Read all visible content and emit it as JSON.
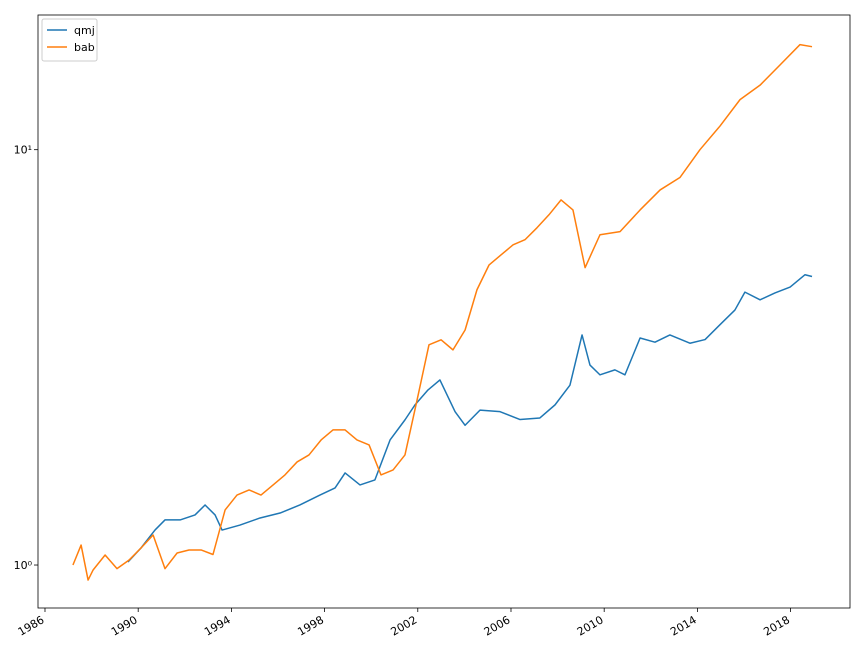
{
  "chart_data": {
    "type": "line",
    "series": [
      {
        "name": "qmj",
        "color": "#1f77b4",
        "x": [
          1989.56,
          1990.12,
          1990.72,
          1991.15,
          1991.8,
          1992.44,
          1992.87,
          1993.3,
          1993.6,
          1994.37,
          1995.23,
          1996.09,
          1996.94,
          1997.8,
          1998.45,
          1998.88,
          1999.52,
          2000.16,
          2000.81,
          2001.45,
          2001.88,
          2002.44,
          2002.95,
          2003.6,
          2004.03,
          2004.67,
          2005.53,
          2006.39,
          2007.24,
          2007.89,
          2008.53,
          2009.05,
          2009.39,
          2009.82,
          2010.46,
          2010.89,
          2011.54,
          2012.18,
          2012.82,
          2013.68,
          2014.33,
          2014.97,
          2015.61,
          2016.04,
          2016.69,
          2017.33,
          2017.98,
          2018.62,
          2018.92
        ],
        "values": [
          1.017,
          1.099,
          1.214,
          1.284,
          1.284,
          1.32,
          1.395,
          1.32,
          1.214,
          1.248,
          1.298,
          1.334,
          1.395,
          1.474,
          1.533,
          1.666,
          1.559,
          1.603,
          2.0,
          2.236,
          2.43,
          2.64,
          2.79,
          2.34,
          2.17,
          2.36,
          2.34,
          2.24,
          2.26,
          2.43,
          2.71,
          3.58,
          3.03,
          2.87,
          2.95,
          2.87,
          3.52,
          3.44,
          3.58,
          3.42,
          3.49,
          3.79,
          4.11,
          4.54,
          4.35,
          4.52,
          4.67,
          5.0,
          4.95
        ]
      },
      {
        "name": "bab",
        "color": "#ff7f0e",
        "x": [
          1987.2,
          1987.55,
          1987.85,
          1988.06,
          1988.58,
          1989.09,
          1989.61,
          1990.12,
          1990.64,
          1991.15,
          1991.67,
          1992.18,
          1992.7,
          1993.21,
          1993.73,
          1994.24,
          1994.76,
          1995.27,
          1995.79,
          1996.3,
          1996.82,
          1997.33,
          1997.85,
          1998.36,
          1998.88,
          1999.39,
          1999.91,
          2000.42,
          2000.94,
          2001.45,
          2001.97,
          2002.48,
          2003.0,
          2003.51,
          2004.03,
          2004.54,
          2005.06,
          2005.57,
          2006.09,
          2006.6,
          2007.12,
          2007.63,
          2008.15,
          2008.66,
          2009.18,
          2009.82,
          2010.68,
          2011.54,
          2012.4,
          2013.25,
          2014.11,
          2014.97,
          2015.83,
          2016.69,
          2017.55,
          2018.4,
          2018.92
        ],
        "values": [
          1.0,
          1.117,
          0.92,
          0.972,
          1.057,
          0.98,
          1.028,
          1.099,
          1.181,
          0.98,
          1.069,
          1.087,
          1.087,
          1.06,
          1.357,
          1.474,
          1.516,
          1.474,
          1.559,
          1.648,
          1.771,
          1.841,
          2.0,
          2.115,
          2.115,
          2.0,
          1.946,
          1.648,
          1.694,
          1.841,
          2.497,
          3.39,
          3.485,
          3.296,
          3.68,
          4.6,
          5.28,
          5.58,
          5.9,
          6.07,
          6.49,
          6.97,
          7.57,
          7.16,
          5.2,
          6.24,
          6.35,
          7.16,
          8.0,
          8.57,
          10.0,
          11.4,
          13.2,
          14.3,
          16.0,
          17.9,
          17.7
        ]
      }
    ],
    "xlim": [
      1985.7,
      2020.55
    ],
    "xticks": [
      1986,
      1990,
      1994,
      1998,
      2002,
      2006,
      2010,
      2014,
      2018
    ],
    "ylim": [
      0.788,
      21.1
    ],
    "yticks": [
      {
        "value": 1,
        "label": "10⁰"
      },
      {
        "value": 10,
        "label": "10¹"
      }
    ],
    "log_y": true,
    "grid": false,
    "legend": "upper left"
  }
}
